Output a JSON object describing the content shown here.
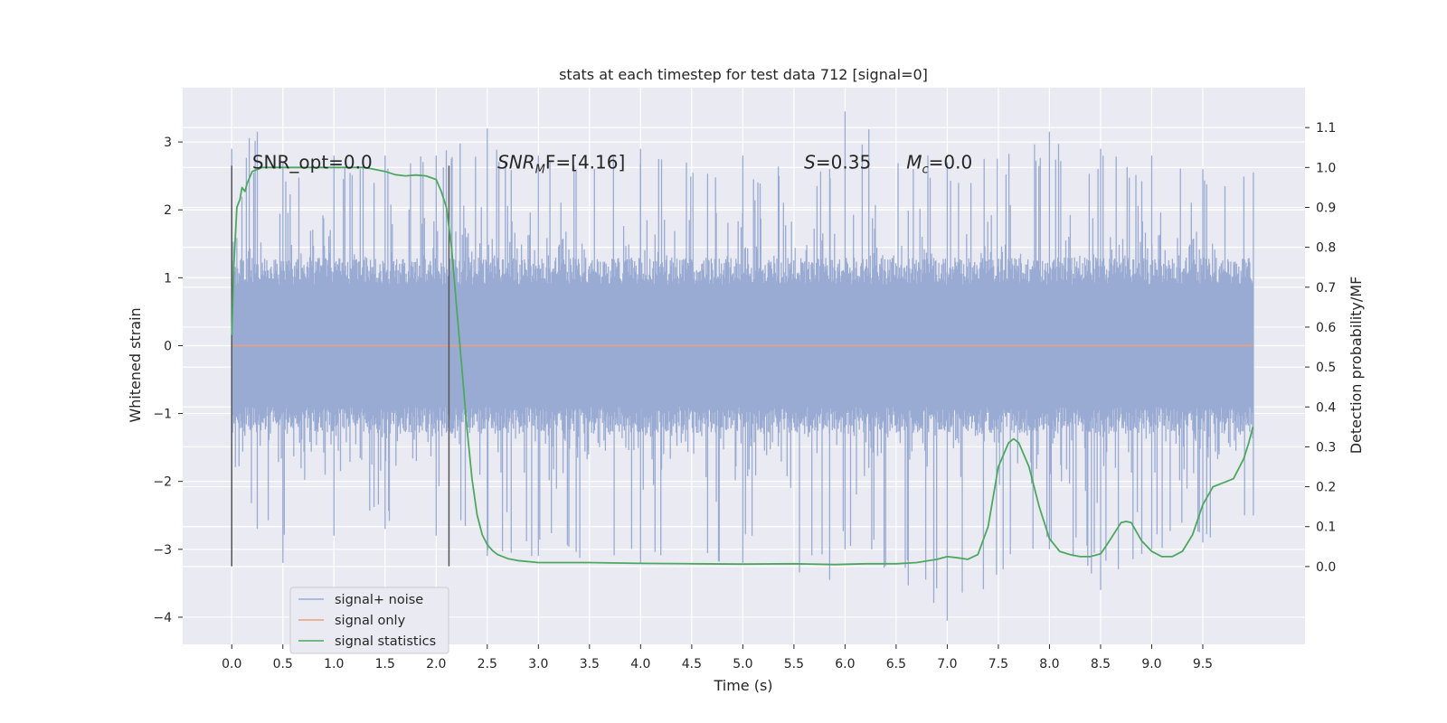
{
  "chart_data": {
    "type": "line",
    "title": "stats at each timestep for test data 712 [signal=0]",
    "xlabel": "Time (s)",
    "ylabel": "Whitened strain",
    "y2label": "Detection probability/MF",
    "xlim": [
      -0.48,
      10.5
    ],
    "ylim": [
      -4.4,
      3.8
    ],
    "y2lim": [
      -0.195,
      1.2
    ],
    "x_ticks": [
      0.0,
      0.5,
      1.0,
      1.5,
      2.0,
      2.5,
      3.0,
      3.5,
      4.0,
      4.5,
      5.0,
      5.5,
      6.0,
      6.5,
      7.0,
      7.5,
      8.0,
      8.5,
      9.0,
      9.5
    ],
    "x_tick_labels": [
      "0.0",
      "0.5",
      "1.0",
      "1.5",
      "2.0",
      "2.5",
      "3.0",
      "3.5",
      "4.0",
      "4.5",
      "5.0",
      "5.5",
      "6.0",
      "6.5",
      "7.0",
      "7.5",
      "8.0",
      "8.5",
      "9.0",
      "9.5"
    ],
    "y_ticks": [
      3,
      2,
      1,
      0,
      -1,
      -2,
      -3,
      -4
    ],
    "y_tick_labels": [
      "3",
      "2",
      "1",
      "0",
      "−1",
      "−2",
      "−3",
      "−4"
    ],
    "y2_ticks": [
      1.1,
      1.0,
      0.9,
      0.8,
      0.7,
      0.6,
      0.5,
      0.4,
      0.3,
      0.2,
      0.1,
      0.0
    ],
    "y2_tick_labels": [
      "1.1",
      "1.0",
      "0.9",
      "0.8",
      "0.7",
      "0.6",
      "0.5",
      "0.4",
      "0.3",
      "0.2",
      "0.1",
      "0.0"
    ],
    "grid": true,
    "legend_position": "lower-left",
    "series": [
      {
        "name": "signal+ noise",
        "color": "#9aabd3",
        "axis": "left",
        "x_range": [
          0.0,
          9.995
        ],
        "envelope_x": [
          0.0,
          0.25,
          0.5,
          1.0,
          1.5,
          2.0,
          2.5,
          3.0,
          4.0,
          5.0,
          5.85,
          6.0,
          7.0,
          8.0,
          8.5,
          9.0,
          9.5,
          9.995
        ],
        "envelope_max": [
          2.9,
          3.15,
          2.7,
          2.8,
          2.8,
          2.8,
          3.2,
          2.8,
          2.9,
          2.8,
          2.6,
          3.45,
          2.7,
          3.15,
          2.9,
          2.8,
          2.6,
          2.55
        ],
        "envelope_min": [
          -2.5,
          -2.7,
          -3.2,
          -2.8,
          -2.7,
          -2.8,
          -3.1,
          -3.1,
          -3.2,
          -3.2,
          -3.45,
          -3.0,
          -4.05,
          -3.0,
          -3.6,
          -3.0,
          -2.9,
          -2.5
        ]
      },
      {
        "name": "signal only",
        "color": "#e79f80",
        "axis": "left",
        "x": [
          0.0,
          9.995
        ],
        "y": [
          0.0,
          0.0
        ]
      },
      {
        "name": "signal statistics",
        "color": "#4da85f",
        "axis": "right",
        "x": [
          0.0,
          0.02,
          0.05,
          0.08,
          0.1,
          0.13,
          0.15,
          0.2,
          0.3,
          0.5,
          1.0,
          1.3,
          1.5,
          1.6,
          1.7,
          1.8,
          1.9,
          2.0,
          2.05,
          2.1,
          2.15,
          2.2,
          2.25,
          2.3,
          2.35,
          2.4,
          2.45,
          2.5,
          2.55,
          2.6,
          2.7,
          2.8,
          3.0,
          3.5,
          4.0,
          4.5,
          5.0,
          5.5,
          5.9,
          6.2,
          6.5,
          6.7,
          6.9,
          7.0,
          7.1,
          7.2,
          7.3,
          7.4,
          7.5,
          7.6,
          7.65,
          7.7,
          7.8,
          7.9,
          8.0,
          8.1,
          8.2,
          8.3,
          8.4,
          8.5,
          8.55,
          8.6,
          8.7,
          8.75,
          8.8,
          8.9,
          9.0,
          9.1,
          9.2,
          9.3,
          9.4,
          9.5,
          9.6,
          9.7,
          9.8,
          9.9,
          9.95,
          9.99
        ],
        "y": [
          0.58,
          0.75,
          0.9,
          0.92,
          0.95,
          0.94,
          0.96,
          0.99,
          1.0,
          1.0,
          1.0,
          1.0,
          0.99,
          0.982,
          0.979,
          0.981,
          0.979,
          0.97,
          0.94,
          0.9,
          0.8,
          0.65,
          0.5,
          0.35,
          0.22,
          0.13,
          0.08,
          0.055,
          0.04,
          0.03,
          0.02,
          0.015,
          0.01,
          0.01,
          0.008,
          0.007,
          0.006,
          0.007,
          0.005,
          0.007,
          0.007,
          0.01,
          0.018,
          0.025,
          0.022,
          0.018,
          0.03,
          0.1,
          0.25,
          0.31,
          0.32,
          0.31,
          0.25,
          0.15,
          0.07,
          0.038,
          0.03,
          0.025,
          0.025,
          0.032,
          0.05,
          0.07,
          0.11,
          0.113,
          0.11,
          0.065,
          0.038,
          0.025,
          0.025,
          0.038,
          0.08,
          0.155,
          0.2,
          0.21,
          0.22,
          0.27,
          0.31,
          0.35
        ]
      }
    ],
    "vertical_lines": [
      {
        "x": 0.0,
        "y_range": [
          -3.25,
          2.65
        ],
        "color": "#555555"
      },
      {
        "x": 2.125,
        "y_range": [
          -3.25,
          2.65
        ],
        "color": "#555555"
      }
    ],
    "annotations": [
      {
        "x": 0.2,
        "y": 2.65,
        "text": "SNR_opt=0.0"
      },
      {
        "x": 2.6,
        "y": 2.65,
        "text_main": "SNR",
        "text_sub": "M",
        "text_tail": "F=[4.16]"
      },
      {
        "x": 5.6,
        "y": 2.65,
        "text_main": "S",
        "text_tail": "=0.35"
      },
      {
        "x": 6.6,
        "y": 2.65,
        "text_main": "M",
        "text_sub": "c",
        "text_tail": "=0.0"
      }
    ]
  }
}
